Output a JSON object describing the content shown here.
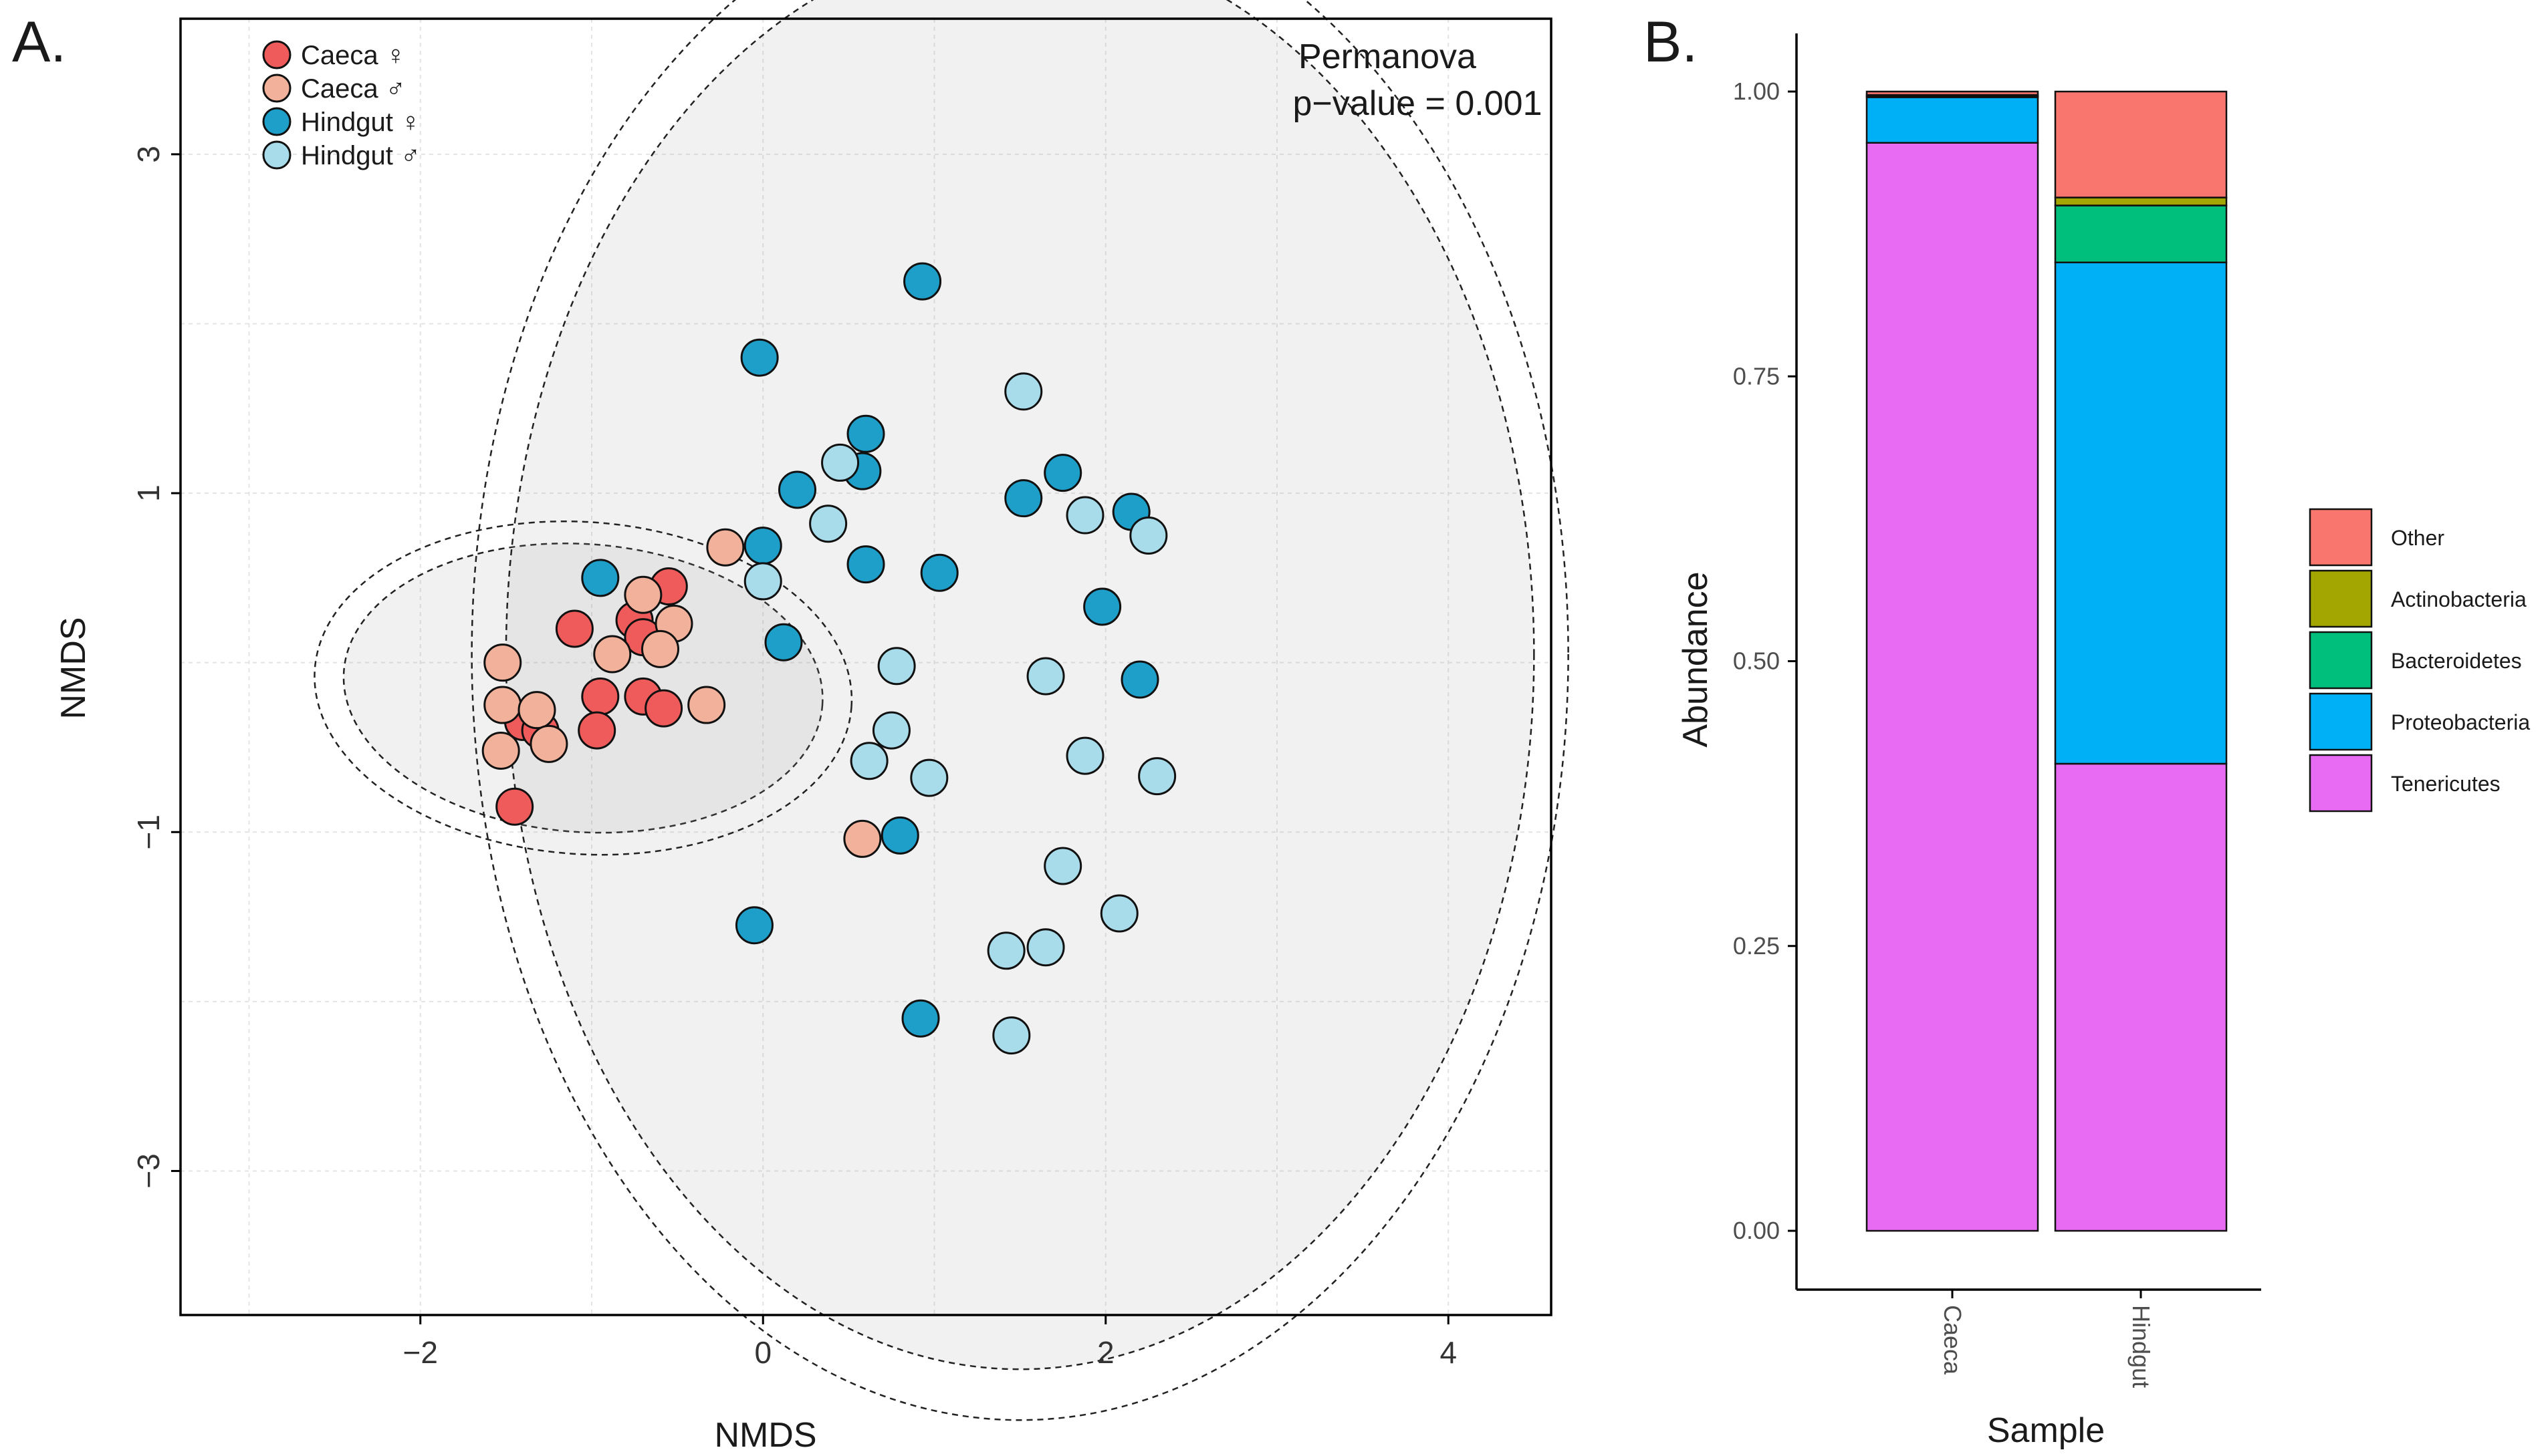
{
  "chart_data": [
    {
      "panel_label": "A.",
      "type": "scatter",
      "subtype": "NMDS ordination with confidence ellipses",
      "xlabel": "NMDS",
      "ylabel": "NMDS",
      "xlim": [
        -3.4,
        4.6
      ],
      "ylim": [
        -3.85,
        3.8
      ],
      "xticks": [
        -2,
        0,
        2,
        4
      ],
      "yticks": [
        3,
        1,
        -1,
        -3
      ],
      "x_tick_labels": [
        "−2",
        "0",
        "2",
        "4"
      ],
      "y_tick_labels": [
        "3",
        "1",
        "−1",
        "−3"
      ],
      "grid": true,
      "legend_position": "top-left",
      "annotation": {
        "line1": "Permanova",
        "line2": "p−value = 0.001"
      },
      "ellipses": [
        {
          "group": "Caeca",
          "cx": -1.05,
          "cy": -0.15,
          "rx": 1.4,
          "ry": 0.85,
          "angle": 4,
          "style": "inner-filled"
        },
        {
          "group": "Caeca",
          "cx": -1.05,
          "cy": -0.15,
          "rx": 1.57,
          "ry": 0.98,
          "angle": 4,
          "style": "outer"
        },
        {
          "group": "Hindgut",
          "cx": 1.5,
          "cy": 0.05,
          "rx": 3.0,
          "ry": 4.22,
          "angle": 0,
          "style": "inner-filled"
        },
        {
          "group": "Hindgut",
          "cx": 1.5,
          "cy": 0.05,
          "rx": 3.2,
          "ry": 4.52,
          "angle": 0,
          "style": "outer"
        }
      ],
      "series": [
        {
          "name": "Caeca ♀",
          "color": "#EF5B5B",
          "points": [
            {
              "x": -0.55,
              "y": 0.45
            },
            {
              "x": -0.75,
              "y": 0.25
            },
            {
              "x": -1.1,
              "y": 0.2
            },
            {
              "x": -0.7,
              "y": 0.15
            },
            {
              "x": -0.95,
              "y": -0.2
            },
            {
              "x": -0.7,
              "y": -0.2
            },
            {
              "x": -0.58,
              "y": -0.27
            },
            {
              "x": -0.97,
              "y": -0.4
            },
            {
              "x": -1.4,
              "y": -0.35
            },
            {
              "x": -1.3,
              "y": -0.4
            },
            {
              "x": -1.45,
              "y": -0.85
            }
          ]
        },
        {
          "name": "Caeca ♂",
          "color": "#F2B19A",
          "points": [
            {
              "x": -0.22,
              "y": 0.68
            },
            {
              "x": -0.7,
              "y": 0.4
            },
            {
              "x": -0.52,
              "y": 0.23
            },
            {
              "x": -0.88,
              "y": 0.05
            },
            {
              "x": -0.6,
              "y": 0.08
            },
            {
              "x": -0.33,
              "y": -0.25
            },
            {
              "x": -1.52,
              "y": 0.0
            },
            {
              "x": -1.52,
              "y": -0.25
            },
            {
              "x": -1.32,
              "y": -0.28
            },
            {
              "x": -1.53,
              "y": -0.52
            },
            {
              "x": -1.25,
              "y": -0.48
            },
            {
              "x": 0.58,
              "y": -1.04
            }
          ]
        },
        {
          "name": "Hindgut ♀",
          "color": "#1E9FCA",
          "points": [
            {
              "x": 0.93,
              "y": 2.25
            },
            {
              "x": -0.02,
              "y": 1.8
            },
            {
              "x": 0.6,
              "y": 1.35
            },
            {
              "x": 0.58,
              "y": 1.13
            },
            {
              "x": 0.2,
              "y": 1.02
            },
            {
              "x": 1.75,
              "y": 1.12
            },
            {
              "x": 1.52,
              "y": 0.97
            },
            {
              "x": 2.15,
              "y": 0.89
            },
            {
              "x": -0.95,
              "y": 0.5
            },
            {
              "x": 0.0,
              "y": 0.69
            },
            {
              "x": 0.6,
              "y": 0.58
            },
            {
              "x": 1.03,
              "y": 0.53
            },
            {
              "x": 1.98,
              "y": 0.33
            },
            {
              "x": 0.12,
              "y": 0.12
            },
            {
              "x": 2.2,
              "y": -0.1
            },
            {
              "x": 0.8,
              "y": -1.02
            },
            {
              "x": -0.05,
              "y": -1.55
            },
            {
              "x": 0.92,
              "y": -2.1
            }
          ]
        },
        {
          "name": "Hindgut ♂",
          "color": "#A9DCEB",
          "points": [
            {
              "x": 1.52,
              "y": 1.6
            },
            {
              "x": 0.45,
              "y": 1.18
            },
            {
              "x": 0.38,
              "y": 0.82
            },
            {
              "x": 1.88,
              "y": 0.87
            },
            {
              "x": 2.25,
              "y": 0.75
            },
            {
              "x": 0.0,
              "y": 0.48
            },
            {
              "x": 0.78,
              "y": -0.02
            },
            {
              "x": 1.65,
              "y": -0.08
            },
            {
              "x": 0.75,
              "y": -0.4
            },
            {
              "x": 0.62,
              "y": -0.58
            },
            {
              "x": 1.88,
              "y": -0.55
            },
            {
              "x": 0.97,
              "y": -0.68
            },
            {
              "x": 2.3,
              "y": -0.67
            },
            {
              "x": 1.75,
              "y": -1.2
            },
            {
              "x": 2.08,
              "y": -1.48
            },
            {
              "x": 1.65,
              "y": -1.68
            },
            {
              "x": 1.42,
              "y": -1.7
            },
            {
              "x": 1.45,
              "y": -2.2
            }
          ]
        }
      ]
    },
    {
      "panel_label": "B.",
      "type": "bar",
      "subtype": "stacked",
      "xlabel": "Sample",
      "ylabel": "Abundance",
      "ylim": [
        0,
        1.05
      ],
      "yticks": [
        0,
        0.25,
        0.5,
        0.75,
        1.0
      ],
      "y_tick_labels": [
        "0.00",
        "0.25",
        "0.50",
        "0.75",
        "1.00"
      ],
      "categories": [
        "Caeca",
        "Hindgut"
      ],
      "legend_position": "right",
      "legend_order": [
        "Other",
        "Actinobacteria",
        "Bacteroidetes",
        "Proteobacteria",
        "Tenericutes"
      ],
      "series": [
        {
          "name": "Tenericutes",
          "color": "#E76BF3",
          "values": [
            0.955,
            0.41
          ]
        },
        {
          "name": "Proteobacteria",
          "color": "#00B0F6",
          "values": [
            0.04,
            0.44
          ]
        },
        {
          "name": "Bacteroidetes",
          "color": "#00BF7D",
          "values": [
            0.001,
            0.05
          ]
        },
        {
          "name": "Actinobacteria",
          "color": "#A3A500",
          "values": [
            0.001,
            0.007
          ]
        },
        {
          "name": "Other",
          "color": "#F8766D",
          "values": [
            0.003,
            0.093
          ]
        }
      ]
    }
  ]
}
